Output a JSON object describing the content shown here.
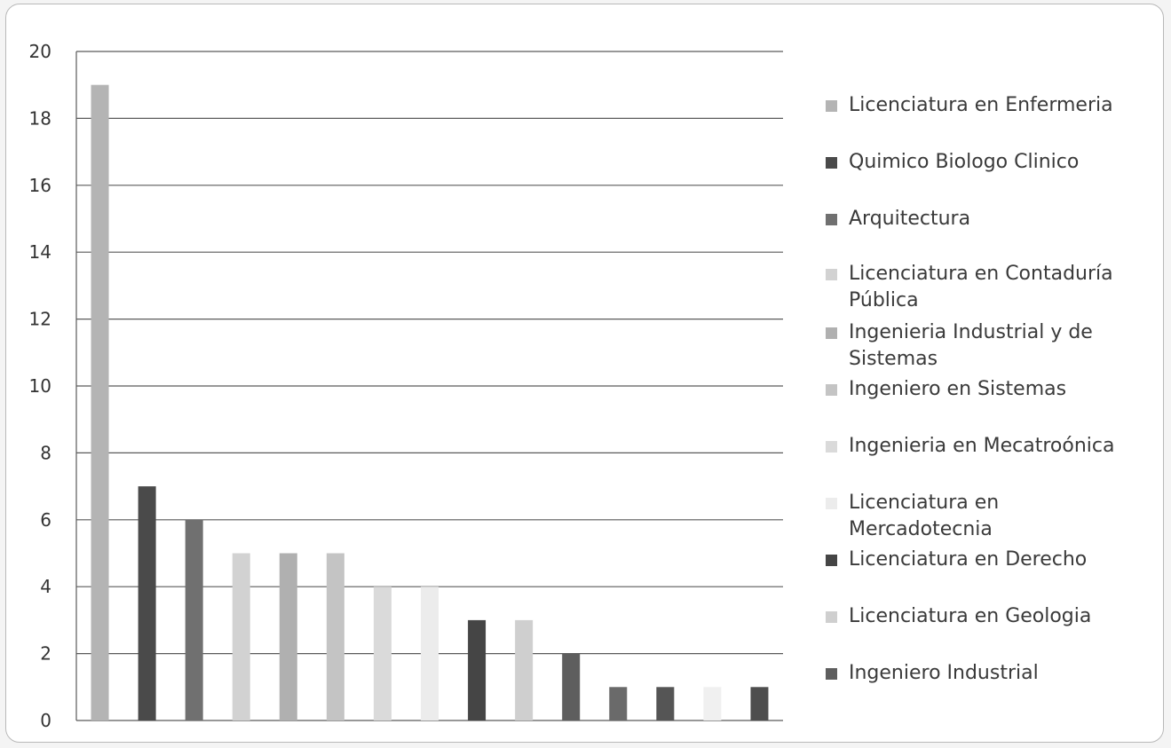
{
  "chart_data": {
    "type": "bar",
    "title": "",
    "xlabel": "",
    "ylabel": "",
    "ylim": [
      0,
      20
    ],
    "yticks": [
      "0",
      "2",
      "4",
      "6",
      "8",
      "10",
      "12",
      "14",
      "16",
      "18",
      "20"
    ],
    "grid": true,
    "legend_position": "right",
    "categories": [
      "Licenciatura en Enfermeria",
      "Quimico Biologo Clinico",
      "Arquitectura",
      "Licenciatura en Contaduría Pública",
      "Ingenieria Industrial y de Sistemas",
      "Ingeniero en Sistemas",
      "Ingenieria en Mecatroónica",
      "Licenciatura en Mercadotecnia",
      "Licenciatura en Derecho",
      "Licenciatura en Geologia",
      "Ingeniero Industrial",
      "",
      "",
      "",
      ""
    ],
    "values": [
      19,
      7,
      6,
      5,
      5,
      5,
      4,
      4,
      3,
      3,
      2,
      1,
      1,
      1,
      1
    ],
    "colors": [
      "#b4b4b4",
      "#4a4a4a",
      "#707070",
      "#d2d2d2",
      "#b0b0b0",
      "#c4c4c4",
      "#dadada",
      "#ececec",
      "#454545",
      "#cfcfcf",
      "#5e5e5e",
      "#6a6a6a",
      "#555555",
      "#f0f0f0",
      "#4e4e4e"
    ],
    "legend": [
      "Licenciatura en Enfermeria",
      "Quimico Biologo Clinico",
      "Arquitectura",
      "Licenciatura en Contaduría\nPública",
      "Ingenieria Industrial y de\nSistemas",
      "Ingeniero en Sistemas",
      "Ingenieria en Mecatroónica",
      "Licenciatura en\nMercadotecnia",
      "Licenciatura en Derecho",
      "Licenciatura en Geologia",
      "Ingeniero Industrial"
    ]
  }
}
